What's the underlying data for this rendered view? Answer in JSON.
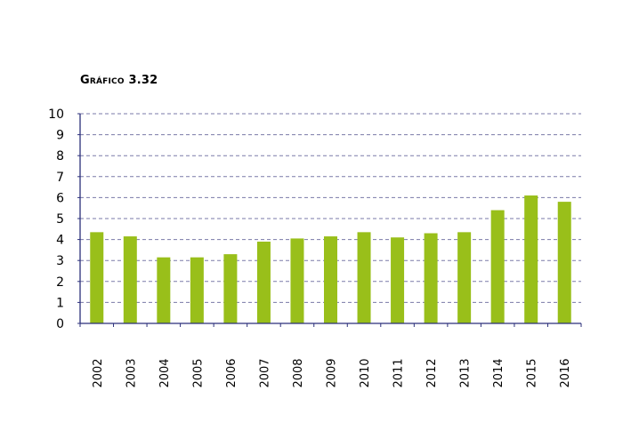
{
  "chart_data": {
    "type": "bar",
    "title": "Gráfico 3.32",
    "xlabel": "",
    "ylabel": "",
    "ylim": [
      0,
      10
    ],
    "yticks": [
      0,
      1,
      2,
      3,
      4,
      5,
      6,
      7,
      8,
      9,
      10
    ],
    "grid": true,
    "categories": [
      "2002",
      "2003",
      "2004",
      "2005",
      "2006",
      "2007",
      "2008",
      "2009",
      "2010",
      "2011",
      "2012",
      "2013",
      "2014",
      "2015",
      "2016"
    ],
    "values": [
      4.35,
      4.15,
      3.15,
      3.15,
      3.3,
      3.9,
      4.05,
      4.15,
      4.35,
      4.1,
      4.3,
      4.35,
      5.4,
      6.1,
      5.8
    ],
    "colors": {
      "bar": "#99bf1a",
      "grid": "#7a7aa8",
      "axis": "#2b2f7a"
    }
  }
}
